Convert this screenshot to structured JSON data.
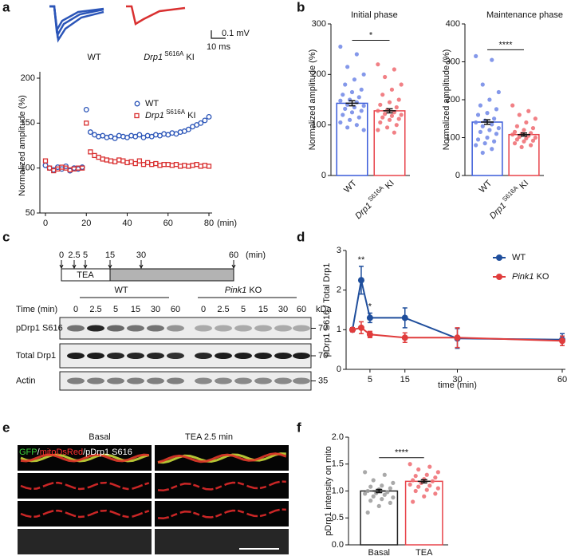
{
  "panel_labels": [
    "a",
    "b",
    "c",
    "d",
    "e",
    "f"
  ],
  "traces": {
    "labels": [
      "WT",
      "Drp1 S616A KI"
    ],
    "scale_bar": [
      "0.1 mV",
      "10 ms"
    ]
  },
  "timeline": {
    "ticks": [
      "0",
      "2.5",
      "5",
      "15",
      "30",
      "60"
    ],
    "unit": "(min)",
    "treatment": "TEA"
  },
  "blot": {
    "groups": [
      "WT",
      "Pink1 KO"
    ],
    "time_label": "Time (min)",
    "lanes": [
      "0",
      "2.5",
      "5",
      "15",
      "30",
      "60"
    ],
    "kda_label": "kDa",
    "rows": [
      {
        "label": "pDrp1 S616",
        "kda": "70"
      },
      {
        "label": "Total Drp1",
        "kda": "70"
      },
      {
        "label": "Actin",
        "kda": "35"
      }
    ]
  },
  "images": {
    "conditions": [
      "Basal",
      "TEA 2.5 min"
    ],
    "overlay_label": [
      "GFP",
      "/",
      "mitoDsRed",
      "/pDrp1 S616"
    ]
  },
  "chart_data": [
    {
      "type": "scatter",
      "ylabel": "Normalized amplitude (%)",
      "xlabel": "(min)",
      "xlim": [
        0,
        80
      ],
      "xticks": [
        0,
        20,
        40,
        60,
        80
      ],
      "ylim": [
        50,
        200
      ],
      "yticks": [
        50,
        100,
        150,
        200
      ],
      "legend": "upper right",
      "series": [
        {
          "name": "WT",
          "color": "#2b55b8",
          "marker": "circle",
          "x": [
            0,
            2,
            4,
            6,
            8,
            10,
            12,
            14,
            16,
            18,
            20,
            22,
            24,
            26,
            28,
            30,
            32,
            34,
            36,
            38,
            40,
            42,
            44,
            46,
            48,
            50,
            52,
            54,
            56,
            58,
            60,
            62,
            64,
            66,
            68,
            70,
            72,
            74,
            76,
            78,
            80
          ],
          "values": [
            103,
            100,
            98,
            101,
            99,
            102,
            97,
            100,
            99,
            101,
            165,
            140,
            137,
            135,
            136,
            134,
            135,
            133,
            136,
            135,
            134,
            136,
            135,
            137,
            134,
            136,
            135,
            137,
            136,
            138,
            137,
            139,
            138,
            140,
            141,
            143,
            146,
            148,
            150,
            153,
            157
          ]
        },
        {
          "name": "Drp1 S616A KI",
          "color": "#d93030",
          "marker": "square",
          "x": [
            0,
            2,
            4,
            6,
            8,
            10,
            12,
            14,
            16,
            18,
            20,
            22,
            24,
            26,
            28,
            30,
            32,
            34,
            36,
            38,
            40,
            42,
            44,
            46,
            48,
            50,
            52,
            54,
            56,
            58,
            60,
            62,
            64,
            66,
            68,
            70,
            72,
            74,
            76,
            78,
            80
          ],
          "values": [
            108,
            100,
            97,
            99,
            101,
            100,
            98,
            99,
            100,
            100,
            150,
            118,
            114,
            112,
            110,
            109,
            108,
            107,
            109,
            108,
            106,
            107,
            105,
            108,
            104,
            106,
            104,
            105,
            103,
            104,
            104,
            103,
            104,
            102,
            103,
            102,
            103,
            104,
            102,
            103,
            102
          ]
        }
      ]
    },
    {
      "type": "bar",
      "title": "Initial phase",
      "ylabel": "Normalized amplitude (%)",
      "categories": [
        "WT",
        "Drp1 S616A KI"
      ],
      "values": [
        143,
        128
      ],
      "errors": [
        5,
        4
      ],
      "colors": [
        "#3a5bd9",
        "#e8434a"
      ],
      "point_colors": [
        "#6f86e6",
        "#ee6a70"
      ],
      "xtick_rotation": 45,
      "ylim": [
        0,
        300
      ],
      "yticks": [
        0,
        100,
        200,
        300
      ],
      "annotations": [
        "*"
      ],
      "points": [
        [
          255,
          240,
          215,
          200,
          190,
          180,
          170,
          165,
          160,
          155,
          150,
          148,
          145,
          140,
          138,
          135,
          132,
          128,
          125,
          120,
          115,
          110,
          105,
          100,
          95,
          90
        ],
        [
          220,
          210,
          195,
          180,
          170,
          160,
          150,
          145,
          140,
          135,
          130,
          128,
          125,
          122,
          120,
          118,
          115,
          112,
          110,
          105,
          100,
          95,
          90,
          85
        ]
      ]
    },
    {
      "type": "bar",
      "title": "Maintenance phase",
      "ylabel": "Normalized amplitude (%)",
      "categories": [
        "WT",
        "Drp1 S616A KI"
      ],
      "values": [
        141,
        108
      ],
      "errors": [
        6,
        4
      ],
      "colors": [
        "#3a5bd9",
        "#e8434a"
      ],
      "point_colors": [
        "#6f86e6",
        "#ee6a70"
      ],
      "xtick_rotation": 45,
      "ylim": [
        0,
        400
      ],
      "yticks": [
        0,
        100,
        200,
        300,
        400
      ],
      "annotations": [
        "****"
      ],
      "points": [
        [
          315,
          305,
          240,
          220,
          200,
          185,
          175,
          165,
          160,
          150,
          145,
          140,
          135,
          130,
          125,
          120,
          115,
          110,
          100,
          95,
          90,
          85,
          80,
          70,
          60
        ],
        [
          185,
          170,
          160,
          150,
          140,
          130,
          125,
          120,
          115,
          112,
          110,
          108,
          105,
          102,
          100,
          98,
          95,
          92,
          90,
          85,
          80,
          75
        ]
      ]
    },
    {
      "type": "line",
      "ylabel": "pDrp1 S616 / Total Drp1",
      "xlabel": "time (min)",
      "legend": "upper right",
      "xlim": [
        0,
        60
      ],
      "xticks": [
        5,
        15,
        30,
        60
      ],
      "ylim": [
        0,
        3
      ],
      "yticks": [
        0,
        1,
        2,
        3
      ],
      "annotations": [
        "**",
        "*"
      ],
      "series": [
        {
          "name": "WT",
          "color": "#1f4e9c",
          "x": [
            0,
            2.5,
            5,
            15,
            30,
            60
          ],
          "values": [
            1,
            2.25,
            1.3,
            1.3,
            0.78,
            0.75
          ],
          "errors": [
            0.05,
            0.35,
            0.12,
            0.25,
            0.25,
            0.15
          ]
        },
        {
          "name": "Pink1 KO",
          "color": "#e03c3c",
          "x": [
            0,
            2.5,
            5,
            15,
            30,
            60
          ],
          "values": [
            1,
            1.05,
            0.88,
            0.8,
            0.8,
            0.72
          ],
          "errors": [
            0.05,
            0.15,
            0.08,
            0.12,
            0.25,
            0.12
          ]
        }
      ]
    },
    {
      "type": "bar",
      "ylabel": "pDrp1 intensity on mito",
      "categories": [
        "Basal",
        "TEA"
      ],
      "values": [
        1.0,
        1.18
      ],
      "errors": [
        0.03,
        0.03
      ],
      "colors": [
        "#222222",
        "#e8434a"
      ],
      "point_colors": [
        "#9a9a9a",
        "#ee6a70"
      ],
      "ylim": [
        0,
        2
      ],
      "yticks": [
        {
          "value": 0,
          "label": "0.0"
        },
        0.5,
        {
          "value": 1,
          "label": "1.0"
        },
        1.5,
        {
          "value": 2,
          "label": "2.0"
        }
      ],
      "annotations": [
        "****"
      ],
      "points": [
        [
          1.35,
          1.3,
          1.2,
          1.15,
          1.1,
          1.08,
          1.05,
          1.03,
          1.0,
          0.98,
          0.96,
          0.95,
          0.93,
          0.9,
          0.88,
          0.85,
          0.82,
          0.78,
          0.72,
          0.6
        ],
        [
          1.5,
          1.45,
          1.4,
          1.35,
          1.3,
          1.28,
          1.25,
          1.22,
          1.2,
          1.18,
          1.15,
          1.12,
          1.1,
          1.08,
          1.05,
          1.02,
          1.0,
          0.95,
          0.9,
          0.8
        ]
      ]
    }
  ]
}
